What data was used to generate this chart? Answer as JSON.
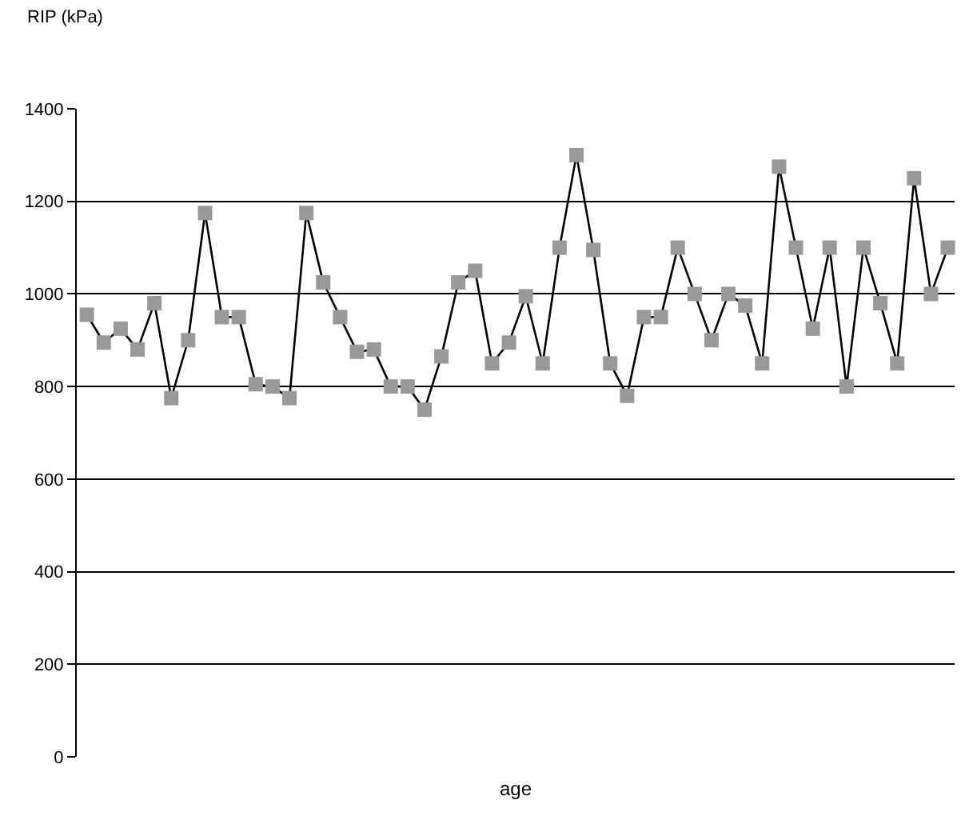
{
  "chart_data": {
    "type": "line",
    "ylabel": "RIP (kPa)",
    "xlabel": "age",
    "categories": [
      null,
      null,
      null,
      null,
      null,
      null,
      null,
      null,
      null,
      null,
      null,
      null,
      null,
      null,
      null,
      null,
      null,
      null,
      null,
      null,
      null,
      null,
      null,
      null,
      null,
      null,
      null,
      null,
      null,
      null,
      null,
      null,
      null,
      null,
      null,
      null,
      null,
      null,
      null,
      null,
      null,
      null,
      null,
      null,
      null,
      null,
      null,
      null,
      null,
      null,
      null,
      null
    ],
    "series": [
      {
        "color": "#999999",
        "values": [
          955,
          895,
          925,
          880,
          980,
          775,
          900,
          1175,
          950,
          950,
          805,
          800,
          775,
          1175,
          1025,
          950,
          875,
          880,
          800,
          800,
          750,
          865,
          1025,
          1050,
          850,
          895,
          995,
          850,
          1100,
          1300,
          1095,
          850,
          780,
          950,
          950,
          1100,
          1000,
          900,
          1000,
          975,
          850,
          1275,
          1100,
          925,
          1100,
          800,
          1100,
          980,
          850,
          1250,
          1000,
          1100
        ]
      }
    ],
    "ylim": [
      0,
      1400
    ],
    "yticks": [
      0,
      200,
      400,
      600,
      800,
      1000,
      1200,
      1400
    ],
    "grid": "y",
    "marker": "square",
    "line_style": "solid",
    "legend": false
  }
}
